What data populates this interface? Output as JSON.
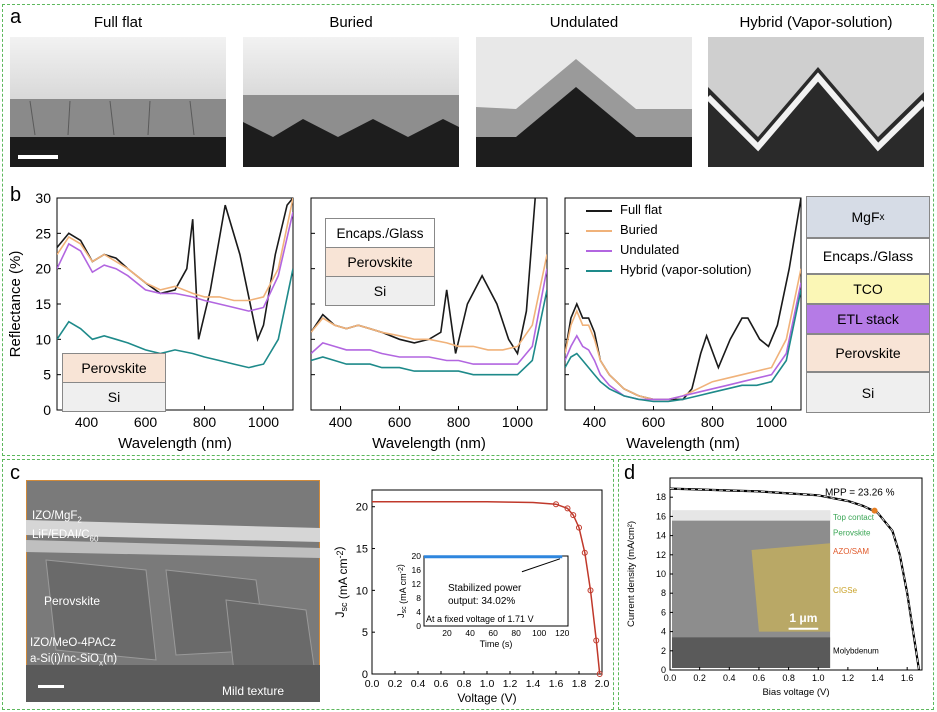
{
  "panel_labels": {
    "a": "a",
    "b": "b",
    "c": "c",
    "d": "d"
  },
  "panel_a": {
    "titles": [
      "Full flat",
      "Buried",
      "Undulated",
      "Hybrid (Vapor-solution)"
    ]
  },
  "panel_b": {
    "ylabel": "Reflectance (%)",
    "xlabel": "Wavelength (nm)",
    "left_stack": [
      "Perovskite",
      "Si"
    ],
    "mid_stack": [
      "Encaps./Glass",
      "Perovskite",
      "Si"
    ],
    "legend": [
      "Full flat",
      "Buried",
      "Undulated",
      "Hybrid (vapor-solution)"
    ],
    "right_stack": [
      "MgF",
      "x",
      "Encaps./Glass",
      "TCO",
      "ETL stack",
      "Perovskite",
      "Si"
    ],
    "colors": {
      "full_flat": "#1a1a1a",
      "buried": "#f0b27a",
      "undulated": "#b266e0",
      "hybrid": "#1e8a8a"
    }
  },
  "panel_c": {
    "sem_labels": [
      "IZO/MgF",
      "2",
      "LiF/EDAI/C",
      "60",
      "Perovskite",
      "IZO/MeO-4PACz",
      "a-Si(i)/nc-SiO",
      "x",
      "(n)",
      "Mild texture"
    ],
    "xlabel": "Voltage (V)",
    "ylabel_main": "J",
    "ylabel_sub": "sc",
    "ylabel_unit": "(mA cm",
    "ylabel_exp": "-2",
    "inset_text": [
      "Stabilized power",
      "output: 34.02%",
      "At a fixed voltage of 1.71 V"
    ],
    "inset_xlabel": "Time (s)",
    "inset_ylabel": "J",
    "inset_ysub": "sc",
    "inset_yunit": "(mA cm",
    "inset_yexp": "-2"
  },
  "panel_d": {
    "xlabel": "Bias voltage (V)",
    "ylabel": "Current density (mA/cm²)",
    "mpp": "MPP = 23.26 %",
    "layers": [
      "Top contact",
      "Perovskite",
      "AZO/SAM",
      "CIGSe",
      "Molybdenum"
    ],
    "scale": "1 μm"
  },
  "chart_data": [
    {
      "type": "line",
      "title": "",
      "xlabel": "Wavelength (nm)",
      "ylabel": "Reflectance (%)",
      "xlim": [
        300,
        1100
      ],
      "ylim": [
        0,
        30
      ],
      "series": [
        {
          "name": "Full flat",
          "x": [
            300,
            340,
            380,
            420,
            460,
            500,
            540,
            600,
            650,
            700,
            740,
            760,
            780,
            820,
            870,
            920,
            960,
            980,
            1000,
            1040,
            1080,
            1100
          ],
          "values": [
            23,
            25,
            24,
            21,
            22,
            21.5,
            20,
            18,
            16.5,
            17,
            20,
            27,
            10,
            17,
            29,
            22,
            14,
            10,
            12,
            22,
            29,
            30
          ]
        },
        {
          "name": "Buried",
          "x": [
            300,
            340,
            380,
            420,
            460,
            500,
            540,
            600,
            650,
            700,
            760,
            800,
            850,
            900,
            950,
            1000,
            1050,
            1100
          ],
          "values": [
            22,
            24.5,
            23.5,
            21,
            22,
            21,
            20,
            18,
            17,
            17.5,
            16.5,
            16,
            16,
            15.5,
            15.5,
            16,
            20,
            30
          ]
        },
        {
          "name": "Undulated",
          "x": [
            300,
            340,
            380,
            420,
            460,
            500,
            540,
            600,
            650,
            700,
            760,
            800,
            850,
            900,
            950,
            1000,
            1050,
            1100
          ],
          "values": [
            20,
            23.5,
            22.5,
            19.5,
            20.5,
            20,
            19,
            17,
            16.5,
            16.5,
            16,
            15.5,
            15,
            14.5,
            14,
            14.5,
            19,
            28
          ]
        },
        {
          "name": "Hybrid (vapor-solution)",
          "x": [
            300,
            340,
            380,
            420,
            460,
            500,
            540,
            600,
            650,
            700,
            760,
            800,
            850,
            900,
            950,
            1000,
            1050,
            1100
          ],
          "values": [
            10,
            12.5,
            11.5,
            10,
            10.5,
            10,
            9.5,
            8.5,
            8,
            8.5,
            8,
            7.5,
            7,
            6.5,
            6,
            6.5,
            10,
            20
          ]
        }
      ]
    },
    {
      "type": "line",
      "xlabel": "Wavelength (nm)",
      "xlim": [
        300,
        1100
      ],
      "ylim": [
        0,
        30
      ],
      "series": [
        {
          "name": "Full flat",
          "x": [
            300,
            340,
            380,
            420,
            460,
            500,
            540,
            600,
            650,
            700,
            740,
            760,
            790,
            830,
            880,
            930,
            970,
            1000,
            1030,
            1060
          ],
          "values": [
            11,
            13.5,
            12,
            11.5,
            12,
            11.5,
            11,
            10,
            9.5,
            10,
            11,
            17,
            8,
            15,
            19,
            15,
            10,
            8,
            14,
            30
          ]
        },
        {
          "name": "Buried",
          "x": [
            300,
            340,
            380,
            420,
            460,
            500,
            540,
            600,
            650,
            700,
            760,
            800,
            850,
            900,
            950,
            1000,
            1050,
            1100
          ],
          "values": [
            11,
            13,
            12,
            11.5,
            12,
            11.5,
            11,
            10.5,
            10,
            10,
            9.5,
            9,
            9,
            8.5,
            8.5,
            9,
            12,
            22
          ]
        },
        {
          "name": "Undulated",
          "x": [
            300,
            340,
            380,
            420,
            460,
            500,
            540,
            600,
            650,
            700,
            760,
            800,
            850,
            900,
            950,
            1000,
            1050,
            1100
          ],
          "values": [
            8,
            9.5,
            9,
            8.5,
            8.5,
            8.5,
            8,
            7.5,
            7.5,
            7.5,
            7,
            7,
            6.5,
            6.5,
            6.5,
            6.5,
            9,
            20
          ]
        },
        {
          "name": "Hybrid (vapor-solution)",
          "x": [
            300,
            340,
            380,
            420,
            460,
            500,
            540,
            600,
            650,
            700,
            760,
            800,
            850,
            900,
            950,
            1000,
            1050,
            1100
          ],
          "values": [
            7,
            7.5,
            7,
            6.5,
            6.5,
            6.5,
            6,
            6,
            5.5,
            5.5,
            5.5,
            5.5,
            5,
            5,
            5,
            5,
            7,
            17
          ]
        }
      ]
    },
    {
      "type": "line",
      "xlabel": "Wavelength (nm)",
      "xlim": [
        300,
        1100
      ],
      "ylim": [
        0,
        30
      ],
      "series": [
        {
          "name": "Full flat",
          "x": [
            300,
            320,
            340,
            360,
            380,
            400,
            420,
            450,
            500,
            550,
            600,
            650,
            700,
            730,
            760,
            780,
            820,
            860,
            900,
            920,
            960,
            990,
            1020,
            1060,
            1100
          ],
          "values": [
            8,
            13,
            15,
            13,
            13,
            11,
            7,
            5,
            3,
            2,
            1.5,
            1.5,
            1.5,
            3,
            8,
            10.5,
            6,
            10,
            13,
            13,
            10,
            9,
            12,
            20,
            30
          ]
        },
        {
          "name": "Buried",
          "x": [
            300,
            320,
            340,
            360,
            380,
            400,
            420,
            450,
            500,
            550,
            600,
            650,
            700,
            750,
            800,
            850,
            900,
            950,
            1000,
            1050,
            1100
          ],
          "values": [
            8,
            12,
            14,
            12,
            12,
            10,
            7,
            5,
            3,
            2,
            1.5,
            1.5,
            2,
            3,
            4,
            4.5,
            5,
            5.5,
            6,
            10,
            20
          ]
        },
        {
          "name": "Undulated",
          "x": [
            300,
            320,
            340,
            360,
            380,
            400,
            420,
            450,
            500,
            550,
            600,
            650,
            700,
            750,
            800,
            850,
            900,
            950,
            1000,
            1050,
            1100
          ],
          "values": [
            7,
            9,
            10.5,
            9,
            8.5,
            7,
            5,
            3.5,
            2,
            1.5,
            1.5,
            1.5,
            2,
            2.5,
            3,
            3.5,
            4,
            4.5,
            5,
            8,
            18
          ]
        },
        {
          "name": "Hybrid (vapor-solution)",
          "x": [
            300,
            320,
            340,
            360,
            380,
            400,
            420,
            450,
            500,
            550,
            600,
            650,
            700,
            750,
            800,
            850,
            900,
            950,
            1000,
            1050,
            1100
          ],
          "values": [
            6,
            7.5,
            8,
            7,
            6,
            5,
            4,
            3,
            2,
            1.5,
            1.2,
            1.2,
            1.5,
            2,
            2.5,
            3,
            3.5,
            3.5,
            4,
            7,
            17
          ]
        }
      ]
    },
    {
      "type": "line",
      "xlabel": "Voltage (V)",
      "xlim": [
        0,
        2.0
      ],
      "ylim": [
        0,
        22
      ],
      "series": [
        {
          "name": "",
          "x": [
            0,
            0.2,
            0.4,
            0.6,
            0.8,
            1.0,
            1.2,
            1.4,
            1.6,
            1.7,
            1.75,
            1.8,
            1.85,
            1.9,
            1.95,
            1.98
          ],
          "values": [
            20.6,
            20.6,
            20.6,
            20.6,
            20.6,
            20.6,
            20.55,
            20.5,
            20.3,
            19.8,
            19,
            17.5,
            14.5,
            10,
            4,
            0
          ]
        }
      ]
    },
    {
      "type": "line",
      "xlabel": "Time (s)",
      "xlim": [
        0,
        125
      ],
      "ylim": [
        0,
        20
      ],
      "series": [
        {
          "name": "",
          "x": [
            0,
            20,
            40,
            60,
            80,
            100,
            120
          ],
          "values": [
            19.8,
            19.8,
            19.8,
            19.8,
            19.8,
            19.8,
            19.8
          ]
        }
      ]
    },
    {
      "type": "line",
      "xlabel": "Bias voltage (V)",
      "ylabel": "Current density (mA/cm²)",
      "xlim": [
        0,
        1.7
      ],
      "ylim": [
        0,
        20
      ],
      "series": [
        {
          "name": "",
          "x": [
            0,
            0.2,
            0.4,
            0.6,
            0.8,
            1.0,
            1.2,
            1.3,
            1.4,
            1.5,
            1.55,
            1.6,
            1.65,
            1.68
          ],
          "values": [
            18.9,
            18.8,
            18.7,
            18.6,
            18.4,
            18.2,
            17.6,
            17.1,
            16.4,
            14.5,
            12,
            8,
            3,
            0
          ]
        }
      ]
    }
  ]
}
